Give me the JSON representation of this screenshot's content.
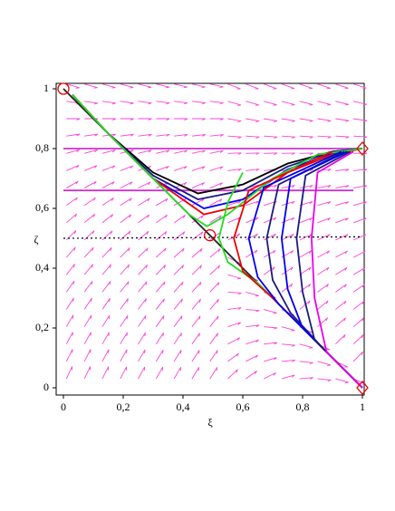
{
  "chart_data": {
    "type": "line",
    "xlabel": "ξ",
    "ylabel": "ζ",
    "xlim": [
      0,
      1
    ],
    "ylim": [
      0,
      1
    ],
    "xticks": [
      0,
      {
        "value": 0.2,
        "label": "0,2"
      },
      {
        "value": 0.4,
        "label": "0,4"
      },
      {
        "value": 0.6,
        "label": "0,6"
      },
      {
        "value": 0.8,
        "label": "0,8"
      },
      1
    ],
    "yticks": [
      0,
      {
        "value": 0.2,
        "label": "0,2"
      },
      {
        "value": 0.4,
        "label": "0,4"
      },
      {
        "value": 0.6,
        "label": "0,6"
      },
      {
        "value": 0.8,
        "label": "0,8"
      },
      1
    ],
    "series": [
      {
        "color": "#cc33cc",
        "x": [
          0,
          1
        ],
        "y": [
          0.8,
          0.8
        ]
      },
      {
        "color": "#cc33cc",
        "x": [
          0,
          0.97
        ],
        "y": [
          0.66,
          0.66
        ]
      },
      {
        "color": "#000000",
        "dash": true,
        "x": [
          0,
          1
        ],
        "y": [
          0.5,
          0.505
        ]
      },
      {
        "color": "#222222",
        "x": [
          0,
          1
        ],
        "y": [
          1,
          0
        ]
      },
      {
        "color": "#000000",
        "x": [
          0.03,
          0.15,
          0.3,
          0.45,
          0.6,
          0.75,
          0.9,
          1
        ],
        "y": [
          0.98,
          0.85,
          0.72,
          0.65,
          0.68,
          0.75,
          0.79,
          0.8
        ]
      },
      {
        "color": "#1a1a80",
        "x": [
          0.03,
          0.15,
          0.3,
          0.45,
          0.6,
          0.75,
          0.9,
          1
        ],
        "y": [
          0.98,
          0.85,
          0.71,
          0.63,
          0.66,
          0.74,
          0.79,
          0.8
        ]
      },
      {
        "color": "#0000ee",
        "x": [
          0.03,
          0.15,
          0.3,
          0.47,
          0.6,
          0.75,
          0.9,
          1
        ],
        "y": [
          0.98,
          0.85,
          0.7,
          0.6,
          0.63,
          0.73,
          0.785,
          0.8
        ]
      },
      {
        "color": "#ee0000",
        "x": [
          0.03,
          0.15,
          0.3,
          0.47,
          0.6,
          0.75,
          0.9,
          1
        ],
        "y": [
          0.98,
          0.85,
          0.7,
          0.58,
          0.61,
          0.72,
          0.78,
          0.8
        ]
      },
      {
        "color": "#22dd22",
        "x": [
          0.03,
          0.15,
          0.3,
          0.42,
          0.48,
          0.55,
          0.7,
          0.85,
          1
        ],
        "y": [
          0.98,
          0.85,
          0.7,
          0.58,
          0.54,
          0.58,
          0.7,
          0.78,
          0.8
        ]
      },
      {
        "color": "#22dd22",
        "x": [
          0.6,
          0.55,
          0.52,
          0.55,
          0.65,
          0.8,
          1
        ],
        "y": [
          0.72,
          0.62,
          0.5,
          0.42,
          0.35,
          0.2,
          0
        ]
      },
      {
        "color": "#ee0000",
        "x": [
          0.9,
          0.62,
          0.57,
          0.6,
          0.7,
          0.85,
          1
        ],
        "y": [
          0.79,
          0.66,
          0.5,
          0.39,
          0.3,
          0.15,
          0
        ]
      },
      {
        "color": "#0000ee",
        "x": [
          0.93,
          0.67,
          0.62,
          0.65,
          0.72,
          0.85,
          1
        ],
        "y": [
          0.79,
          0.67,
          0.5,
          0.37,
          0.28,
          0.15,
          0
        ]
      },
      {
        "color": "#1a1a80",
        "x": [
          0.94,
          0.72,
          0.68,
          0.7,
          0.76,
          0.87,
          1
        ],
        "y": [
          0.79,
          0.68,
          0.5,
          0.36,
          0.25,
          0.13,
          0
        ]
      },
      {
        "color": "#0000ee",
        "x": [
          0.95,
          0.76,
          0.73,
          0.75,
          0.8,
          0.9,
          1
        ],
        "y": [
          0.79,
          0.7,
          0.5,
          0.33,
          0.2,
          0.1,
          0
        ]
      },
      {
        "color": "#1a1a80",
        "x": [
          0.96,
          0.81,
          0.78,
          0.8,
          0.84,
          0.92,
          1
        ],
        "y": [
          0.79,
          0.71,
          0.5,
          0.32,
          0.16,
          0.08,
          0
        ]
      },
      {
        "color": "#ee00ee",
        "x": [
          0.97,
          0.85,
          0.83,
          0.84,
          0.88,
          0.94,
          1
        ],
        "y": [
          0.79,
          0.72,
          0.5,
          0.3,
          0.12,
          0.06,
          0
        ]
      }
    ],
    "points": [
      {
        "x": 0,
        "y": 1,
        "shape": "circle",
        "color": "#ee0000"
      },
      {
        "x": 0.49,
        "y": 0.51,
        "shape": "circle",
        "color": "#ee0000"
      },
      {
        "x": 1,
        "y": 0.8,
        "shape": "diamond",
        "color": "#ee0000"
      },
      {
        "x": 1,
        "y": 0,
        "shape": "diamond",
        "color": "#ee0000"
      }
    ]
  }
}
